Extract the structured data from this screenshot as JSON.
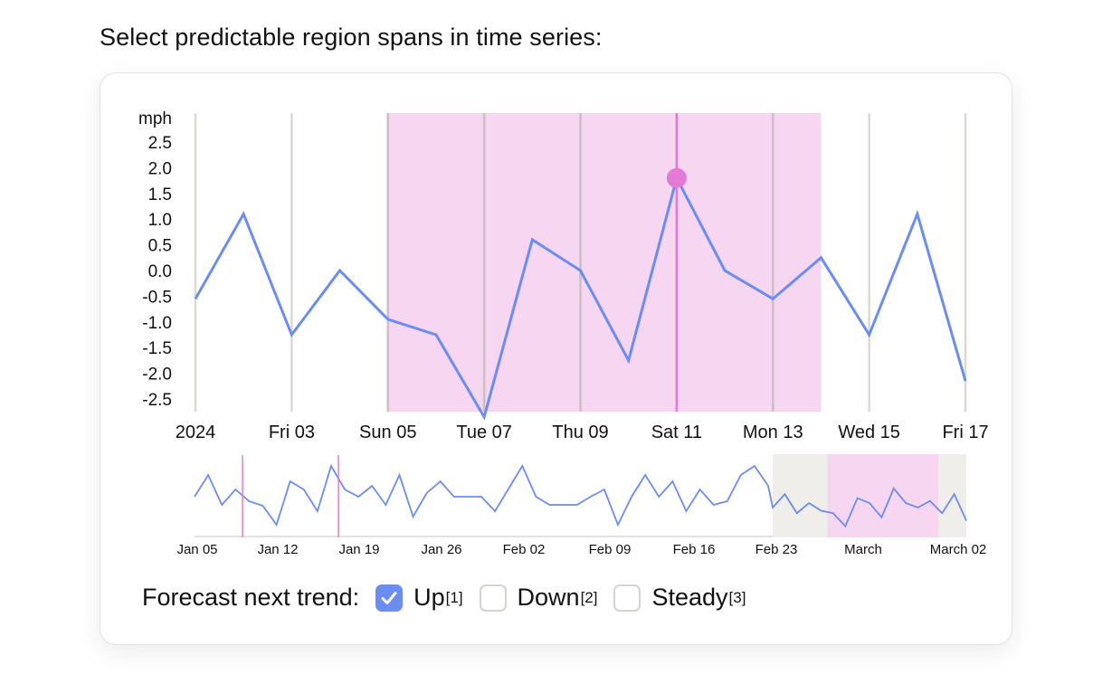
{
  "prompt": "Select predictable region spans in time series:",
  "colors": {
    "line": "#6b8cf0",
    "selection": "#f6d6f0",
    "cursor": "#e57ad6",
    "grid": "#dcd9d2",
    "window": "#efeeeb"
  },
  "chart_data": {
    "type": "line",
    "ylabel": "mph",
    "ylim": [
      -2.5,
      2.5
    ],
    "yticks": [
      "2.5",
      "2.0",
      "1.5",
      "1.0",
      "0.5",
      "0.0",
      "-0.5",
      "-1.0",
      "-1.5",
      "-2.0",
      "-2.5"
    ],
    "x": [
      "2024-01-01",
      "2024-01-02",
      "2024-01-03",
      "2024-01-04",
      "2024-01-05",
      "2024-01-06",
      "2024-01-07",
      "2024-01-08",
      "2024-01-09",
      "2024-01-10",
      "2024-01-11",
      "2024-01-12",
      "2024-01-13",
      "2024-01-14",
      "2024-01-15",
      "2024-01-16",
      "2024-01-17"
    ],
    "values": [
      -0.55,
      1.1,
      -1.25,
      0.0,
      -0.95,
      -1.25,
      -2.85,
      0.6,
      0.0,
      -1.75,
      1.8,
      0.0,
      -0.55,
      0.25,
      -1.25,
      1.1,
      -2.15
    ],
    "xticks": [
      "2024",
      "Fri 03",
      "Sun 05",
      "Tue 07",
      "Thu 09",
      "Sat 11",
      "Mon 13",
      "Wed 15",
      "Fri 17"
    ],
    "selection": {
      "start": "2024-01-05",
      "end": "2024-01-14"
    },
    "cursor": {
      "date": "2024-01-11",
      "value": 1.8
    },
    "grid": "vertical",
    "overview": {
      "xticks": [
        "Jan 05",
        "Jan 12",
        "Jan 19",
        "Jan 26",
        "Feb 02",
        "Feb 09",
        "Feb 16",
        "Feb 23",
        "March",
        "March 02"
      ],
      "values": [
        0,
        1.2,
        -0.45,
        0.4,
        -0.25,
        -0.5,
        -1.55,
        0.85,
        0.4,
        -0.8,
        1.7,
        0.4,
        0,
        0.6,
        -0.45,
        1.2,
        -1.1,
        0.2,
        0.85,
        0,
        0,
        0,
        -0.8,
        0.45,
        1.7,
        0,
        -0.45,
        -0.45,
        -0.45,
        0,
        0.4,
        -1.55,
        0,
        1.2,
        0,
        0.85,
        -0.8,
        0.4,
        -0.45,
        -0.25,
        1.2,
        1.7,
        0.6
      ]
    }
  },
  "controls": {
    "label": "Forecast next trend:",
    "options": [
      {
        "label": "Up",
        "key": "[1]",
        "checked": true
      },
      {
        "label": "Down",
        "key": "[2]",
        "checked": false
      },
      {
        "label": "Steady",
        "key": "[3]",
        "checked": false
      }
    ]
  }
}
